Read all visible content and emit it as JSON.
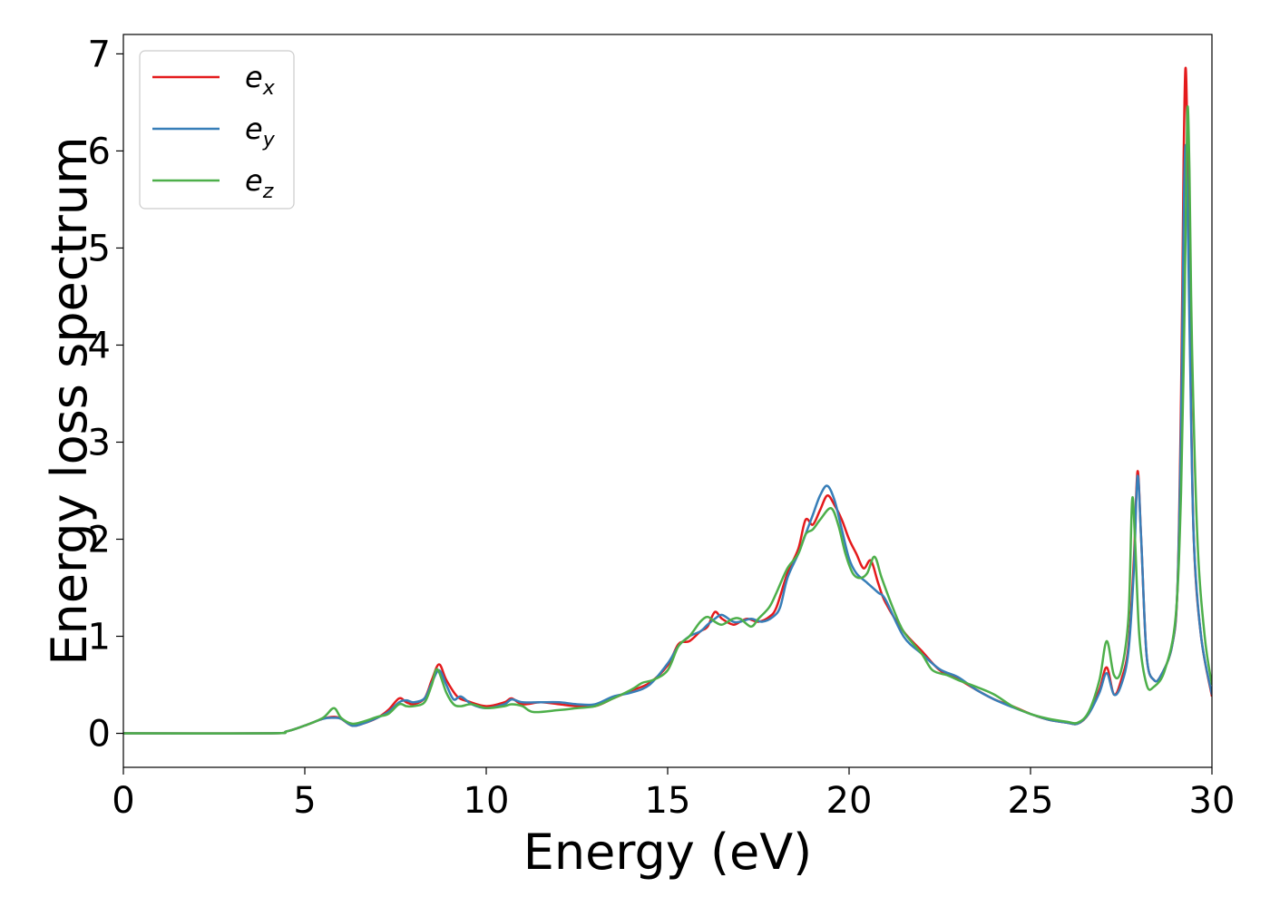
{
  "chart_data": {
    "type": "line",
    "title": "",
    "xlabel": "Energy (eV)",
    "ylabel": "Energy loss spectrum",
    "xlim": [
      0,
      30
    ],
    "ylim": [
      -0.35,
      7.2
    ],
    "xticks": [
      0,
      5,
      10,
      15,
      20,
      25,
      30
    ],
    "yticks": [
      0,
      1,
      2,
      3,
      4,
      5,
      6,
      7
    ],
    "grid": false,
    "legend_position": "top-left",
    "series": [
      {
        "name": "e_x",
        "legend_base": "e",
        "legend_sub": "x",
        "color": "#e41a1c",
        "points": [
          [
            0,
            0
          ],
          [
            4,
            0
          ],
          [
            4.5,
            0.02
          ],
          [
            5,
            0.08
          ],
          [
            5.5,
            0.15
          ],
          [
            5.8,
            0.17
          ],
          [
            6,
            0.15
          ],
          [
            6.3,
            0.08
          ],
          [
            6.6,
            0.1
          ],
          [
            7,
            0.16
          ],
          [
            7.3,
            0.24
          ],
          [
            7.6,
            0.36
          ],
          [
            7.8,
            0.32
          ],
          [
            8,
            0.3
          ],
          [
            8.3,
            0.36
          ],
          [
            8.5,
            0.55
          ],
          [
            8.7,
            0.71
          ],
          [
            8.9,
            0.55
          ],
          [
            9.2,
            0.38
          ],
          [
            9.5,
            0.33
          ],
          [
            10,
            0.28
          ],
          [
            10.5,
            0.32
          ],
          [
            10.7,
            0.36
          ],
          [
            11,
            0.3
          ],
          [
            11.5,
            0.32
          ],
          [
            12,
            0.3
          ],
          [
            12.5,
            0.28
          ],
          [
            13,
            0.28
          ],
          [
            13.5,
            0.36
          ],
          [
            14,
            0.44
          ],
          [
            14.5,
            0.52
          ],
          [
            15,
            0.7
          ],
          [
            15.3,
            0.92
          ],
          [
            15.6,
            0.95
          ],
          [
            15.9,
            1.05
          ],
          [
            16.1,
            1.1
          ],
          [
            16.3,
            1.25
          ],
          [
            16.5,
            1.18
          ],
          [
            16.8,
            1.12
          ],
          [
            17,
            1.15
          ],
          [
            17.2,
            1.18
          ],
          [
            17.5,
            1.15
          ],
          [
            17.8,
            1.2
          ],
          [
            18,
            1.3
          ],
          [
            18.3,
            1.65
          ],
          [
            18.6,
            1.9
          ],
          [
            18.8,
            2.2
          ],
          [
            19,
            2.15
          ],
          [
            19.2,
            2.3
          ],
          [
            19.4,
            2.45
          ],
          [
            19.6,
            2.35
          ],
          [
            19.8,
            2.2
          ],
          [
            20,
            2.0
          ],
          [
            20.2,
            1.85
          ],
          [
            20.4,
            1.7
          ],
          [
            20.6,
            1.78
          ],
          [
            20.8,
            1.55
          ],
          [
            21,
            1.35
          ],
          [
            21.5,
            1.05
          ],
          [
            22,
            0.85
          ],
          [
            22.5,
            0.65
          ],
          [
            23,
            0.56
          ],
          [
            23.5,
            0.45
          ],
          [
            24,
            0.35
          ],
          [
            24.5,
            0.28
          ],
          [
            25,
            0.2
          ],
          [
            25.5,
            0.14
          ],
          [
            26,
            0.11
          ],
          [
            26.3,
            0.1
          ],
          [
            26.6,
            0.2
          ],
          [
            26.9,
            0.45
          ],
          [
            27.1,
            0.68
          ],
          [
            27.3,
            0.4
          ],
          [
            27.5,
            0.55
          ],
          [
            27.7,
            0.9
          ],
          [
            27.85,
            1.8
          ],
          [
            27.95,
            2.7
          ],
          [
            28.05,
            2.0
          ],
          [
            28.2,
            0.8
          ],
          [
            28.4,
            0.55
          ],
          [
            28.6,
            0.6
          ],
          [
            28.9,
            0.9
          ],
          [
            29.05,
            1.5
          ],
          [
            29.15,
            3.5
          ],
          [
            29.22,
            5.9
          ],
          [
            29.27,
            6.85
          ],
          [
            29.32,
            6.2
          ],
          [
            29.4,
            4.0
          ],
          [
            29.5,
            2.0
          ],
          [
            29.7,
            1.0
          ],
          [
            30,
            0.38
          ]
        ]
      },
      {
        "name": "e_y",
        "legend_base": "e",
        "legend_sub": "y",
        "color": "#377eb8",
        "points": [
          [
            0,
            0
          ],
          [
            4,
            0
          ],
          [
            4.5,
            0.02
          ],
          [
            5,
            0.08
          ],
          [
            5.5,
            0.15
          ],
          [
            5.8,
            0.16
          ],
          [
            6,
            0.15
          ],
          [
            6.3,
            0.08
          ],
          [
            6.6,
            0.1
          ],
          [
            7,
            0.16
          ],
          [
            7.3,
            0.22
          ],
          [
            7.6,
            0.32
          ],
          [
            7.8,
            0.34
          ],
          [
            8,
            0.32
          ],
          [
            8.3,
            0.36
          ],
          [
            8.5,
            0.52
          ],
          [
            8.7,
            0.65
          ],
          [
            8.9,
            0.5
          ],
          [
            9.1,
            0.35
          ],
          [
            9.3,
            0.38
          ],
          [
            9.6,
            0.3
          ],
          [
            10,
            0.26
          ],
          [
            10.5,
            0.3
          ],
          [
            10.7,
            0.35
          ],
          [
            11,
            0.32
          ],
          [
            11.5,
            0.32
          ],
          [
            12,
            0.32
          ],
          [
            12.5,
            0.3
          ],
          [
            13,
            0.3
          ],
          [
            13.5,
            0.38
          ],
          [
            14,
            0.42
          ],
          [
            14.5,
            0.5
          ],
          [
            15,
            0.72
          ],
          [
            15.3,
            0.9
          ],
          [
            15.6,
            1.0
          ],
          [
            15.9,
            1.05
          ],
          [
            16.1,
            1.12
          ],
          [
            16.3,
            1.18
          ],
          [
            16.5,
            1.22
          ],
          [
            16.8,
            1.15
          ],
          [
            17,
            1.15
          ],
          [
            17.3,
            1.18
          ],
          [
            17.6,
            1.15
          ],
          [
            17.9,
            1.2
          ],
          [
            18.1,
            1.3
          ],
          [
            18.3,
            1.6
          ],
          [
            18.6,
            1.85
          ],
          [
            18.8,
            2.05
          ],
          [
            19,
            2.25
          ],
          [
            19.2,
            2.45
          ],
          [
            19.4,
            2.55
          ],
          [
            19.6,
            2.4
          ],
          [
            19.8,
            2.1
          ],
          [
            20,
            1.8
          ],
          [
            20.2,
            1.65
          ],
          [
            20.5,
            1.55
          ],
          [
            20.8,
            1.45
          ],
          [
            21,
            1.38
          ],
          [
            21.5,
            1.0
          ],
          [
            22,
            0.82
          ],
          [
            22.5,
            0.66
          ],
          [
            23,
            0.58
          ],
          [
            23.5,
            0.45
          ],
          [
            24,
            0.35
          ],
          [
            24.5,
            0.27
          ],
          [
            25,
            0.2
          ],
          [
            25.5,
            0.14
          ],
          [
            26,
            0.11
          ],
          [
            26.3,
            0.1
          ],
          [
            26.6,
            0.2
          ],
          [
            26.9,
            0.42
          ],
          [
            27.1,
            0.62
          ],
          [
            27.3,
            0.4
          ],
          [
            27.5,
            0.5
          ],
          [
            27.7,
            0.85
          ],
          [
            27.85,
            1.7
          ],
          [
            27.95,
            2.65
          ],
          [
            28.05,
            2.0
          ],
          [
            28.2,
            0.8
          ],
          [
            28.4,
            0.55
          ],
          [
            28.6,
            0.6
          ],
          [
            28.9,
            0.9
          ],
          [
            29.05,
            1.5
          ],
          [
            29.15,
            3.2
          ],
          [
            29.22,
            5.3
          ],
          [
            29.27,
            6.05
          ],
          [
            29.32,
            5.6
          ],
          [
            29.4,
            3.8
          ],
          [
            29.5,
            2.0
          ],
          [
            29.7,
            1.0
          ],
          [
            30,
            0.4
          ]
        ]
      },
      {
        "name": "e_z",
        "legend_base": "e",
        "legend_sub": "z",
        "color": "#4daf4a",
        "points": [
          [
            0,
            0
          ],
          [
            4,
            0
          ],
          [
            4.5,
            0.02
          ],
          [
            5,
            0.08
          ],
          [
            5.5,
            0.16
          ],
          [
            5.8,
            0.26
          ],
          [
            6,
            0.16
          ],
          [
            6.3,
            0.1
          ],
          [
            6.6,
            0.12
          ],
          [
            7,
            0.17
          ],
          [
            7.3,
            0.2
          ],
          [
            7.6,
            0.3
          ],
          [
            7.8,
            0.28
          ],
          [
            8,
            0.28
          ],
          [
            8.3,
            0.32
          ],
          [
            8.5,
            0.5
          ],
          [
            8.65,
            0.66
          ],
          [
            8.9,
            0.42
          ],
          [
            9.1,
            0.3
          ],
          [
            9.3,
            0.28
          ],
          [
            9.6,
            0.3
          ],
          [
            10,
            0.26
          ],
          [
            10.5,
            0.28
          ],
          [
            10.7,
            0.3
          ],
          [
            11,
            0.28
          ],
          [
            11.3,
            0.22
          ],
          [
            12,
            0.24
          ],
          [
            12.5,
            0.26
          ],
          [
            13,
            0.28
          ],
          [
            13.5,
            0.36
          ],
          [
            14,
            0.45
          ],
          [
            14.3,
            0.52
          ],
          [
            14.6,
            0.55
          ],
          [
            15,
            0.65
          ],
          [
            15.3,
            0.9
          ],
          [
            15.6,
            1.0
          ],
          [
            15.9,
            1.15
          ],
          [
            16.1,
            1.2
          ],
          [
            16.3,
            1.15
          ],
          [
            16.5,
            1.12
          ],
          [
            16.8,
            1.18
          ],
          [
            17,
            1.18
          ],
          [
            17.3,
            1.1
          ],
          [
            17.5,
            1.18
          ],
          [
            17.8,
            1.3
          ],
          [
            18,
            1.45
          ],
          [
            18.3,
            1.7
          ],
          [
            18.6,
            1.85
          ],
          [
            18.8,
            2.05
          ],
          [
            19,
            2.1
          ],
          [
            19.2,
            2.2
          ],
          [
            19.5,
            2.32
          ],
          [
            19.7,
            2.15
          ],
          [
            19.9,
            1.85
          ],
          [
            20.1,
            1.65
          ],
          [
            20.3,
            1.6
          ],
          [
            20.5,
            1.65
          ],
          [
            20.7,
            1.82
          ],
          [
            20.9,
            1.6
          ],
          [
            21.2,
            1.3
          ],
          [
            21.5,
            1.05
          ],
          [
            22,
            0.82
          ],
          [
            22.3,
            0.65
          ],
          [
            22.7,
            0.6
          ],
          [
            23,
            0.55
          ],
          [
            23.5,
            0.48
          ],
          [
            24,
            0.4
          ],
          [
            24.5,
            0.28
          ],
          [
            25,
            0.2
          ],
          [
            25.5,
            0.15
          ],
          [
            26,
            0.12
          ],
          [
            26.3,
            0.11
          ],
          [
            26.6,
            0.22
          ],
          [
            26.9,
            0.55
          ],
          [
            27.1,
            0.95
          ],
          [
            27.3,
            0.6
          ],
          [
            27.5,
            0.65
          ],
          [
            27.7,
            1.2
          ],
          [
            27.8,
            2.4
          ],
          [
            27.88,
            2.0
          ],
          [
            28.0,
            1.0
          ],
          [
            28.2,
            0.5
          ],
          [
            28.4,
            0.48
          ],
          [
            28.7,
            0.65
          ],
          [
            29.0,
            1.2
          ],
          [
            29.15,
            2.5
          ],
          [
            29.25,
            4.5
          ],
          [
            29.32,
            6.4
          ],
          [
            29.38,
            5.8
          ],
          [
            29.45,
            4.0
          ],
          [
            29.6,
            2.0
          ],
          [
            29.8,
            1.0
          ],
          [
            30,
            0.5
          ]
        ]
      }
    ]
  }
}
